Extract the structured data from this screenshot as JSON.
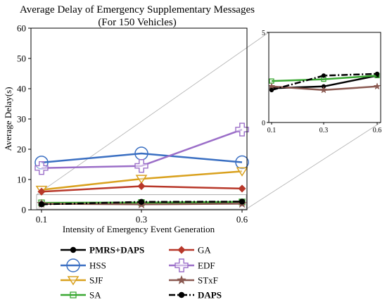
{
  "chart_data": {
    "type": "line",
    "title": "Average Delay of Emergency Supplementary Messages",
    "subtitle": "(For 150 Vehicles)",
    "xlabel": "Intensity of Emergency Event Generation",
    "ylabel": "Average Delay(s)",
    "x": [
      "0.1",
      "0.3",
      "0.6"
    ],
    "ylim": [
      0,
      60
    ],
    "yticks": [
      0,
      10,
      20,
      30,
      40,
      50,
      60
    ],
    "grid": false,
    "legend_position": "bottom",
    "series": [
      {
        "name": "PMRS+DAPS",
        "values": [
          1.9,
          2.0,
          2.6
        ],
        "color": "#000000",
        "marker": "circle-filled",
        "dash": "solid",
        "bold": true
      },
      {
        "name": "HSS",
        "values": [
          15.6,
          18.6,
          15.7
        ],
        "color": "#3a6fc2",
        "marker": "circle-open-large",
        "dash": "solid",
        "bold": false
      },
      {
        "name": "SJF",
        "values": [
          6.6,
          10.2,
          12.7
        ],
        "color": "#d9a11e",
        "marker": "triangle-down-open",
        "dash": "solid",
        "bold": false
      },
      {
        "name": "SA",
        "values": [
          2.3,
          2.4,
          2.6
        ],
        "color": "#3aa832",
        "marker": "square-open",
        "dash": "solid",
        "bold": false
      },
      {
        "name": "GA",
        "values": [
          6.0,
          7.8,
          7.0
        ],
        "color": "#b8382a",
        "marker": "diamond-filled",
        "dash": "solid",
        "bold": false
      },
      {
        "name": "EDF",
        "values": [
          13.8,
          14.5,
          26.5
        ],
        "color": "#9b6ec8",
        "marker": "plus-open",
        "dash": "solid",
        "bold": false
      },
      {
        "name": "STxF",
        "values": [
          2.0,
          1.8,
          2.0
        ],
        "color": "#8b5a52",
        "marker": "star",
        "dash": "solid",
        "bold": false
      },
      {
        "name": "DAPS",
        "values": [
          1.8,
          2.6,
          2.7
        ],
        "color": "#000000",
        "marker": "circle-filled",
        "dash": "dashdot",
        "bold": true
      }
    ],
    "inset": {
      "ylim": [
        0,
        5
      ],
      "yticks": [
        0,
        5
      ],
      "x": [
        "0.1",
        "0.3",
        "0.6"
      ]
    }
  }
}
